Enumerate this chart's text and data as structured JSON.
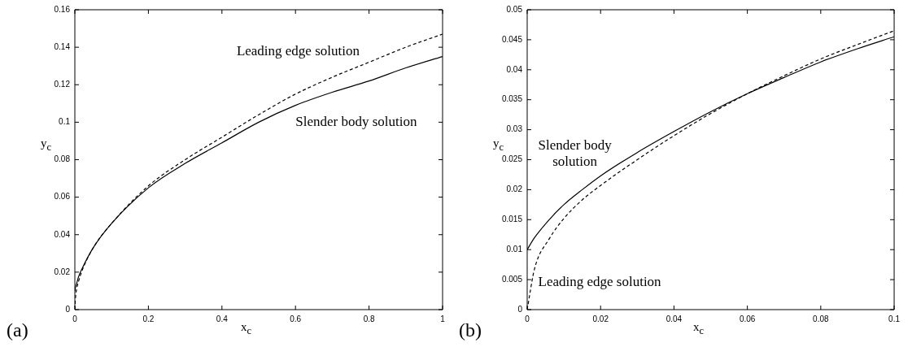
{
  "chart_data": [
    {
      "type": "line",
      "xlabel": "x$_{c}$",
      "ylabel": "y$_{c}$",
      "annotations": [
        "(a)"
      ],
      "xlim": [
        0,
        1
      ],
      "xticks": [
        0,
        0.2,
        0.4,
        0.6,
        0.8,
        1
      ],
      "ylim": [
        0,
        0.16
      ],
      "yticks": [
        0,
        0.02,
        0.04,
        0.06,
        0.08,
        0.1,
        0.12,
        0.14,
        0.16
      ],
      "grid": false,
      "marker": "none",
      "series": [
        {
          "name": "Leading edge solution",
          "color": "#000000",
          "line_style": "dashed",
          "x": [
            0,
            0.002,
            0.005,
            0.01,
            0.02,
            0.05,
            0.1,
            0.2,
            0.3,
            0.4,
            0.5,
            0.6,
            0.7,
            0.8,
            0.9,
            1
          ],
          "values": [
            0,
            0.007,
            0.011,
            0.015,
            0.021,
            0.033,
            0.046,
            0.066,
            0.08,
            0.092,
            0.104,
            0.115,
            0.124,
            0.132,
            0.14,
            0.147
          ]
        },
        {
          "name": "Slender body solution",
          "color": "#000000",
          "line_style": "solid",
          "x": [
            0,
            0.002,
            0.005,
            0.01,
            0.02,
            0.05,
            0.1,
            0.2,
            0.3,
            0.4,
            0.5,
            0.6,
            0.7,
            0.8,
            0.9,
            1
          ],
          "values": [
            0.01,
            0.012,
            0.014,
            0.0175,
            0.022,
            0.033,
            0.046,
            0.065,
            0.078,
            0.089,
            0.1,
            0.109,
            0.116,
            0.122,
            0.129,
            0.135
          ]
        }
      ]
    },
    {
      "type": "line",
      "xlabel": "x$_{c}$",
      "ylabel": "y$_{c}$",
      "annotations": [
        "(b)"
      ],
      "xlim": [
        0,
        0.1
      ],
      "xticks": [
        0,
        0.02,
        0.04,
        0.06,
        0.08,
        0.1
      ],
      "ylim": [
        0,
        0.05
      ],
      "yticks": [
        0,
        0.005,
        0.01,
        0.015,
        0.02,
        0.025,
        0.03,
        0.035,
        0.04,
        0.045,
        0.05
      ],
      "grid": false,
      "marker": "none",
      "series": [
        {
          "name": "Slender body solution",
          "color": "#000000",
          "line_style": "solid",
          "x": [
            0,
            0.002,
            0.006,
            0.01,
            0.015,
            0.02,
            0.03,
            0.04,
            0.05,
            0.06,
            0.07,
            0.08,
            0.09,
            0.1
          ],
          "values": [
            0.01,
            0.012,
            0.015,
            0.0175,
            0.02,
            0.0223,
            0.0262,
            0.0297,
            0.033,
            0.036,
            0.0387,
            0.0413,
            0.0435,
            0.0455
          ]
        },
        {
          "name": "Leading edge solution",
          "color": "#000000",
          "line_style": "dashed",
          "x": [
            0,
            0.002,
            0.006,
            0.01,
            0.015,
            0.02,
            0.03,
            0.04,
            0.05,
            0.06,
            0.07,
            0.08,
            0.09,
            0.1
          ],
          "values": [
            0,
            0.0068,
            0.0118,
            0.0152,
            0.0183,
            0.0207,
            0.025,
            0.029,
            0.0327,
            0.036,
            0.039,
            0.0418,
            0.0442,
            0.0465
          ]
        }
      ]
    }
  ]
}
